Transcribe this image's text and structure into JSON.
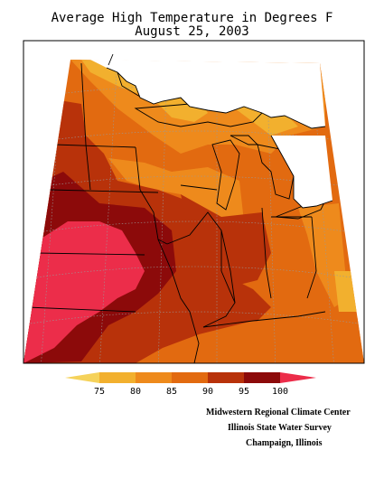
{
  "title": {
    "line1": "Average High Temperature in Degrees F",
    "line2": "August 25, 2003"
  },
  "legend": {
    "labels": [
      "75",
      "80",
      "85",
      "90",
      "95",
      "100"
    ],
    "colors": {
      "below75": "#f5d25a",
      "c75_80": "#f2b02e",
      "c80_85": "#ee8a1c",
      "c85_90": "#e26a10",
      "c90_95": "#b8320a",
      "c95_100": "#8c0a0a",
      "above100": "#ec2d4a"
    }
  },
  "credits": {
    "line1": "Midwestern Regional Climate Center",
    "line2": "Illinois State Water Survey",
    "line3": "Champaign, Illinois"
  }
}
